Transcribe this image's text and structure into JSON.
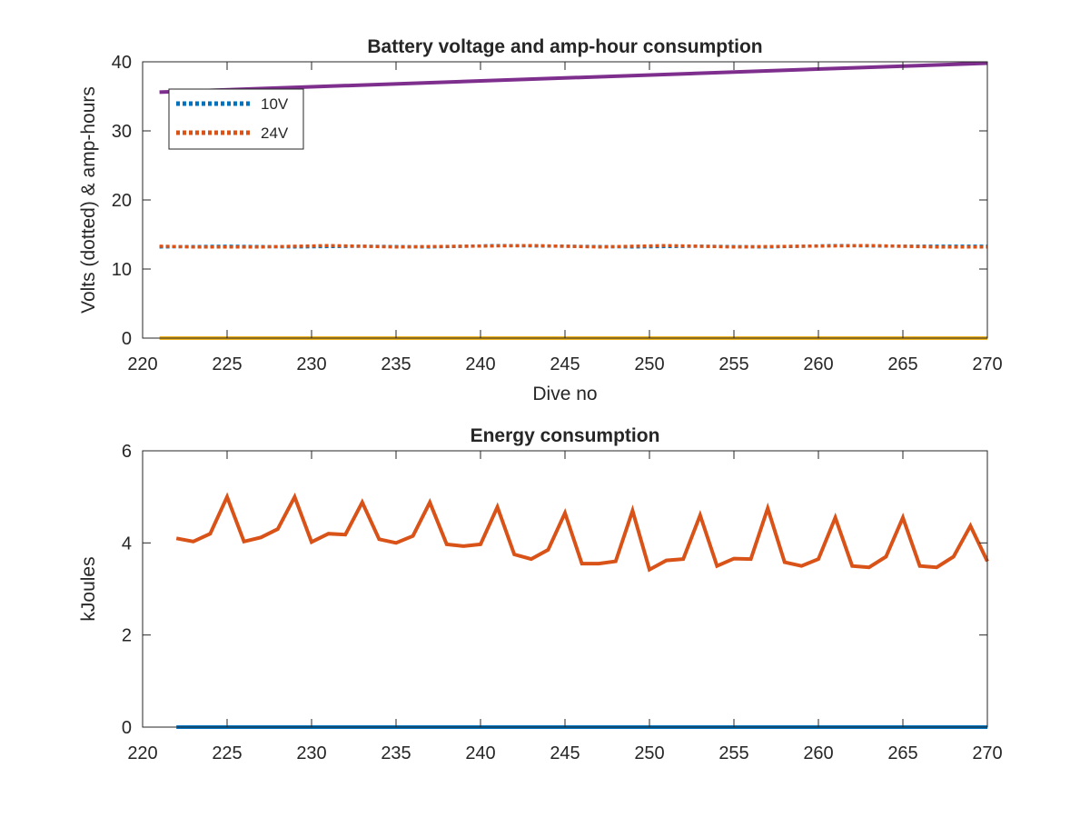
{
  "chart_data": [
    {
      "type": "line",
      "title": "Battery voltage and amp-hour consumption",
      "xlabel": "Dive no",
      "ylabel": "Volts (dotted) & amp-hours",
      "xlim": [
        220,
        270
      ],
      "ylim": [
        0,
        40
      ],
      "xticks": [
        "220",
        "225",
        "230",
        "235",
        "240",
        "245",
        "250",
        "255",
        "260",
        "265",
        "270"
      ],
      "yticks": [
        "0",
        "10",
        "20",
        "30",
        "40"
      ],
      "grid": false,
      "legend": {
        "placement": "top-left",
        "entries": [
          "10V",
          "24V"
        ]
      },
      "series": [
        {
          "name": "10V",
          "style": "dotted",
          "color": "#0072BD",
          "x": [
            221,
            225,
            229,
            233,
            237,
            241,
            245,
            249,
            253,
            257,
            261,
            265,
            270
          ],
          "values": [
            13.2,
            13.3,
            13.2,
            13.3,
            13.2,
            13.4,
            13.3,
            13.2,
            13.3,
            13.2,
            13.4,
            13.3,
            13.3
          ]
        },
        {
          "name": "24V",
          "style": "dotted",
          "color": "#D95319",
          "x": [
            221,
            223,
            227,
            231,
            235,
            239,
            243,
            247,
            251,
            255,
            259,
            263,
            267,
            270
          ],
          "values": [
            13.3,
            13.2,
            13.2,
            13.4,
            13.2,
            13.3,
            13.4,
            13.2,
            13.4,
            13.2,
            13.3,
            13.4,
            13.2,
            13.2
          ]
        },
        {
          "style": "solid",
          "color": "#EDB120",
          "x": [
            221,
            270
          ],
          "values": [
            0,
            0
          ]
        },
        {
          "style": "solid",
          "color": "#7E2F8E",
          "x": [
            221,
            270
          ],
          "values": [
            35.6,
            39.8
          ]
        }
      ]
    },
    {
      "type": "line",
      "title": "Energy consumption",
      "xlabel": "",
      "ylabel": "kJoules",
      "xlim": [
        220,
        270
      ],
      "ylim": [
        0,
        6
      ],
      "xticks": [
        "220",
        "225",
        "230",
        "235",
        "240",
        "245",
        "250",
        "255",
        "260",
        "265",
        "270"
      ],
      "yticks": [
        "0",
        "2",
        "4",
        "6"
      ],
      "grid": false,
      "series": [
        {
          "style": "solid",
          "color": "#D95319",
          "x": [
            222,
            223,
            224,
            225,
            226,
            227,
            228,
            229,
            230,
            231,
            232,
            233,
            234,
            235,
            236,
            237,
            238,
            239,
            240,
            241,
            242,
            243,
            244,
            245,
            246,
            247,
            248,
            249,
            250,
            251,
            252,
            253,
            254,
            255,
            256,
            257,
            258,
            259,
            260,
            261,
            262,
            263,
            264,
            265,
            266,
            267,
            268,
            269,
            270
          ],
          "values": [
            4.1,
            4.03,
            4.2,
            5.0,
            4.03,
            4.12,
            4.3,
            5.0,
            4.02,
            4.2,
            4.18,
            4.88,
            4.08,
            4.0,
            4.15,
            4.88,
            3.97,
            3.93,
            3.97,
            4.78,
            3.75,
            3.65,
            3.85,
            4.65,
            3.55,
            3.55,
            3.6,
            4.7,
            3.42,
            3.62,
            3.65,
            4.6,
            3.5,
            3.66,
            3.65,
            4.75,
            3.58,
            3.5,
            3.65,
            4.55,
            3.5,
            3.47,
            3.7,
            4.55,
            3.5,
            3.47,
            3.7,
            4.37,
            3.6
          ]
        },
        {
          "style": "solid",
          "color": "#0072BD",
          "x": [
            222,
            270
          ],
          "values": [
            0,
            0
          ]
        }
      ]
    }
  ]
}
